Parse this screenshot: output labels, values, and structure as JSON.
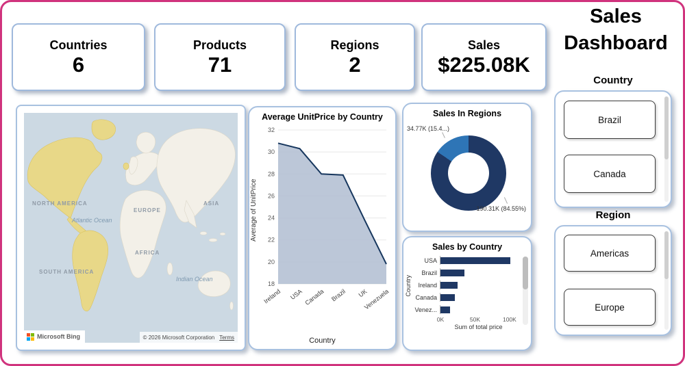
{
  "page": {
    "title_line1": "Sales",
    "title_line2": "Dashboard"
  },
  "kpis": [
    {
      "label": "Countries",
      "value": "6"
    },
    {
      "label": "Products",
      "value": "71"
    },
    {
      "label": "Regions",
      "value": "2"
    },
    {
      "label": "Sales",
      "value": "$225.08K"
    }
  ],
  "slicers": {
    "country": {
      "header": "Country",
      "options": [
        "Brazil",
        "Canada"
      ]
    },
    "region": {
      "header": "Region",
      "options": [
        "Americas",
        "Europe"
      ]
    }
  },
  "map": {
    "continent_labels": [
      "NORTH AMERICA",
      "EUROPE",
      "ASIA",
      "AFRICA",
      "SOUTH AMERICA"
    ],
    "ocean_labels": [
      "Atlantic Ocean",
      "Indian Ocean"
    ],
    "logo_text": "Microsoft Bing",
    "attribution": "© 2026 Microsoft Corporation",
    "terms_label": "Terms"
  },
  "chart_data": [
    {
      "type": "area",
      "title": "Average UnitPrice by Country",
      "categories": [
        "Ireland",
        "USA",
        "Canada",
        "Brazil",
        "UK",
        "Venezuela"
      ],
      "values": [
        30.8,
        30.3,
        28.0,
        27.9,
        23.8,
        19.8
      ],
      "xlabel": "Country",
      "ylabel": "Average of UnitPrice",
      "ylim": [
        18,
        32
      ],
      "yticks": [
        18,
        20,
        22,
        24,
        26,
        28,
        30,
        32
      ],
      "grid": true,
      "line_color": "#17375E",
      "fill_color": "#B0BDD1"
    },
    {
      "type": "pie",
      "title": "Sales In Regions",
      "slices": [
        {
          "label": "34.77K (15.4...)",
          "value": 34.77,
          "pct": 15.45,
          "color": "#2E75B6"
        },
        {
          "label": "190.31K (84.55%)",
          "value": 190.31,
          "pct": 84.55,
          "color": "#1F3864"
        }
      ]
    },
    {
      "type": "bar",
      "title": "Sales by Country",
      "categories": [
        "USA",
        "Brazil",
        "Ireland",
        "Canada",
        "Venez..."
      ],
      "values": [
        101000,
        35000,
        25000,
        21000,
        14000
      ],
      "xlabel": "Sum of total price",
      "ylabel": "Country",
      "xmax": 110000,
      "xticks": [
        {
          "label": "0K",
          "value": 0
        },
        {
          "label": "50K",
          "value": 50000
        },
        {
          "label": "100K",
          "value": 100000
        }
      ],
      "bar_color": "#1F3864"
    }
  ],
  "colors": {
    "page_border": "#D0337D",
    "card_border": "#A8C1E0",
    "navy": "#1F3864"
  }
}
